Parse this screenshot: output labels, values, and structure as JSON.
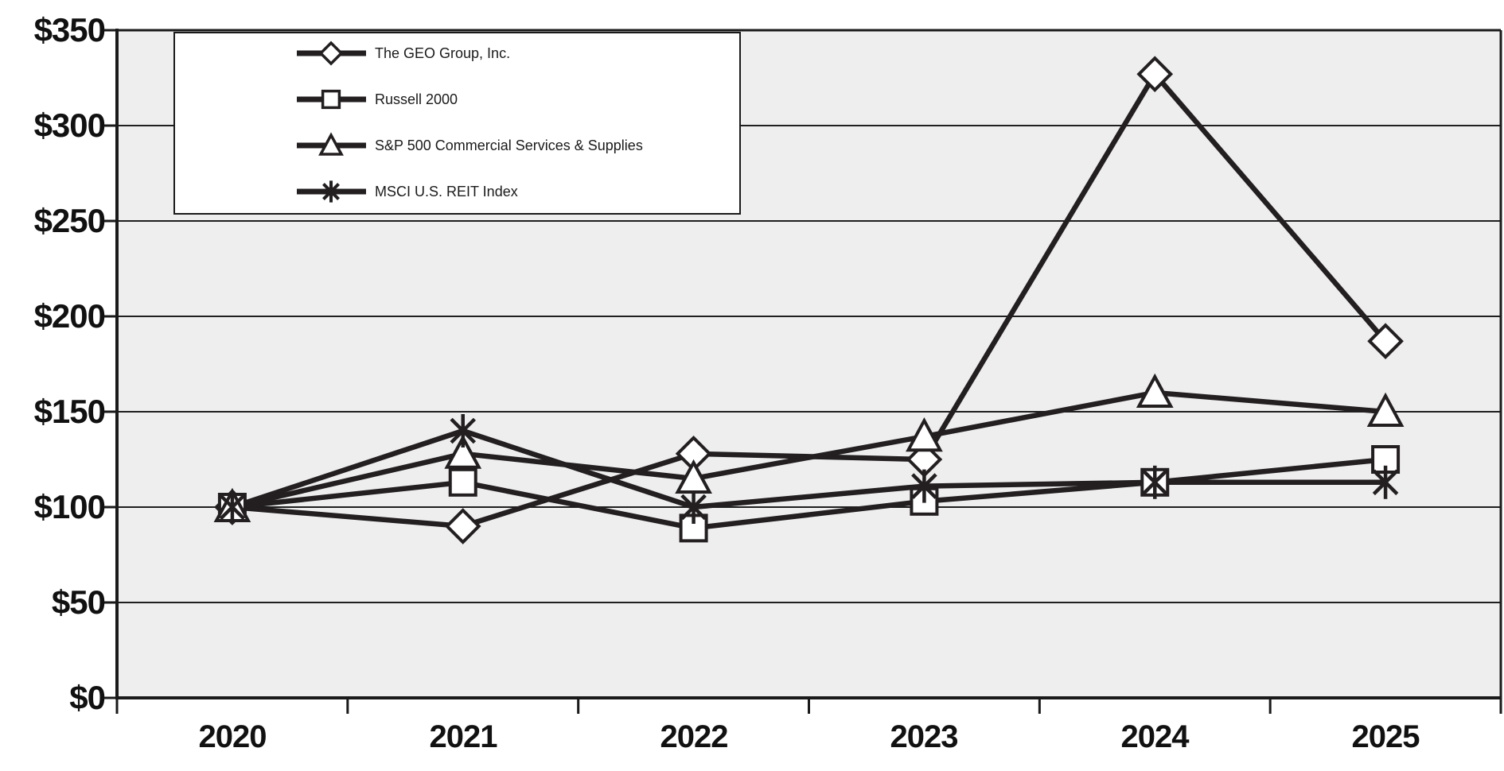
{
  "chart_data": {
    "type": "line",
    "title": "",
    "x_categories": [
      "2020",
      "2021",
      "2022",
      "2023",
      "2024",
      "2025"
    ],
    "y_ticks": [
      "$350",
      "$300",
      "$250",
      "$200",
      "$150",
      "$100",
      "$50",
      "$0"
    ],
    "y_min": 0,
    "y_max": 350,
    "y_step": 50,
    "y_axis_prefix": "$",
    "grid": true,
    "legend_position": "top-left",
    "series": [
      {
        "name": "The GEO Group, Inc.",
        "marker": "diamond",
        "values": [
          100,
          90,
          128,
          125,
          327,
          187
        ]
      },
      {
        "name": "Russell 2000",
        "marker": "square",
        "values": [
          100,
          113,
          89,
          103,
          113,
          125
        ]
      },
      {
        "name": "S&P 500 Commercial Services & Supplies",
        "marker": "triangle",
        "values": [
          100,
          128,
          115,
          137,
          160,
          150
        ]
      },
      {
        "name": "MSCI U.S. REIT Index",
        "marker": "asterisk",
        "values": [
          100,
          140,
          100,
          111,
          113,
          113
        ]
      }
    ],
    "colors": {
      "line": "#231f20",
      "grid": "#1f1f1f",
      "axis": "#1a1a1a",
      "plot_bg": "#eeeeee",
      "marker_fill": "#ffffff",
      "text": "#111111"
    }
  }
}
